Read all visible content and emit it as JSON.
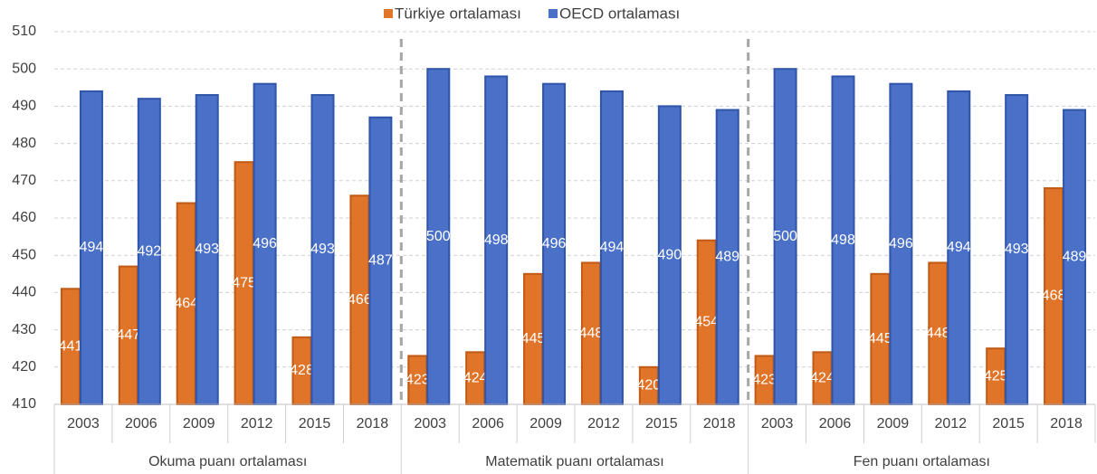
{
  "chart_data": {
    "type": "bar",
    "categories": [
      "2003",
      "2006",
      "2009",
      "2012",
      "2015",
      "2018",
      "2003",
      "2006",
      "2009",
      "2012",
      "2015",
      "2018",
      "2003",
      "2006",
      "2009",
      "2012",
      "2015",
      "2018"
    ],
    "groups": [
      "Okuma puanı ortalaması",
      "Matematik puanı ortalaması",
      "Fen puanı ortalaması"
    ],
    "series": [
      {
        "name": "Türkiye ortalaması",
        "color": "#e07428",
        "values": [
          441,
          447,
          464,
          475,
          428,
          466,
          423,
          424,
          445,
          448,
          420,
          454,
          423,
          424,
          445,
          448,
          425,
          468
        ]
      },
      {
        "name": "OECD ortalaması",
        "color": "#4a70c8",
        "values": [
          494,
          492,
          493,
          496,
          493,
          487,
          500,
          498,
          496,
          494,
          490,
          489,
          500,
          498,
          496,
          494,
          493,
          489
        ]
      }
    ],
    "ylim": [
      410,
      510
    ],
    "yticks": [
      410,
      420,
      430,
      440,
      450,
      460,
      470,
      480,
      490,
      500,
      510
    ],
    "grid": true,
    "legend": "top"
  }
}
